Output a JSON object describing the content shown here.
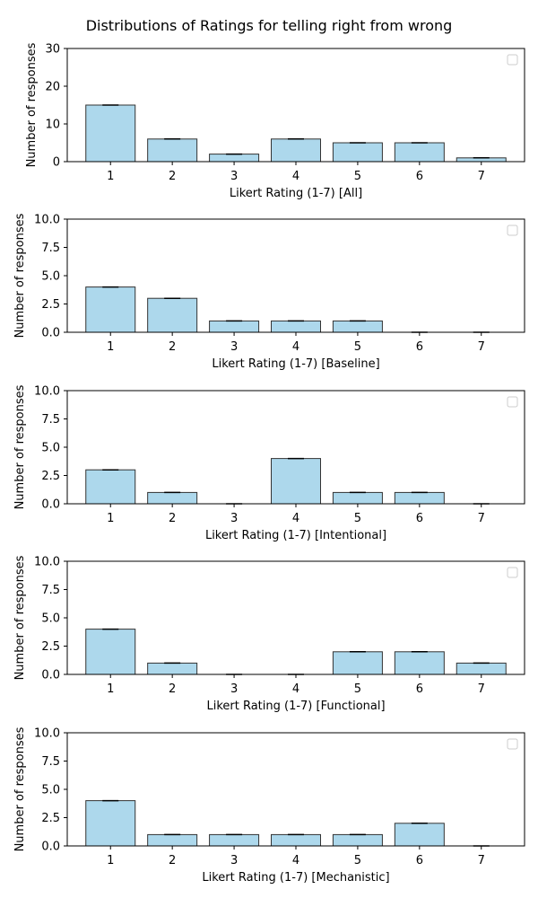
{
  "figure": {
    "title": "Distributions of Ratings for telling right from wrong"
  },
  "chart_data": [
    {
      "type": "bar",
      "categories": [
        "1",
        "2",
        "3",
        "4",
        "5",
        "6",
        "7"
      ],
      "values": [
        15,
        6,
        2,
        6,
        5,
        5,
        1
      ],
      "xlabel": "Likert Rating (1-7) [All]",
      "ylabel": "Number of responses",
      "ylim": [
        0,
        30
      ],
      "yticks": [
        "0",
        "10",
        "20",
        "30"
      ],
      "bar_color": "#add8ec",
      "legend": "top-right (empty)"
    },
    {
      "type": "bar",
      "categories": [
        "1",
        "2",
        "3",
        "4",
        "5",
        "6",
        "7"
      ],
      "values": [
        4,
        3,
        1,
        1,
        1,
        0,
        0
      ],
      "xlabel": "Likert Rating (1-7) [Baseline]",
      "ylabel": "Number of responses",
      "ylim": [
        0,
        10
      ],
      "yticks": [
        "0.0",
        "2.5",
        "5.0",
        "7.5",
        "10.0"
      ],
      "bar_color": "#add8ec",
      "legend": "top-right (empty)"
    },
    {
      "type": "bar",
      "categories": [
        "1",
        "2",
        "3",
        "4",
        "5",
        "6",
        "7"
      ],
      "values": [
        3,
        1,
        0,
        4,
        1,
        1,
        0
      ],
      "xlabel": "Likert Rating (1-7) [Intentional]",
      "ylabel": "Number of responses",
      "ylim": [
        0,
        10
      ],
      "yticks": [
        "0.0",
        "2.5",
        "5.0",
        "7.5",
        "10.0"
      ],
      "bar_color": "#add8ec",
      "legend": "top-right (empty)"
    },
    {
      "type": "bar",
      "categories": [
        "1",
        "2",
        "3",
        "4",
        "5",
        "6",
        "7"
      ],
      "values": [
        4,
        1,
        0,
        0,
        2,
        2,
        1
      ],
      "xlabel": "Likert Rating (1-7) [Functional]",
      "ylabel": "Number of responses",
      "ylim": [
        0,
        10
      ],
      "yticks": [
        "0.0",
        "2.5",
        "5.0",
        "7.5",
        "10.0"
      ],
      "bar_color": "#add8ec",
      "legend": "top-right (empty)"
    },
    {
      "type": "bar",
      "categories": [
        "1",
        "2",
        "3",
        "4",
        "5",
        "6",
        "7"
      ],
      "values": [
        4,
        1,
        1,
        1,
        1,
        2,
        0
      ],
      "xlabel": "Likert Rating (1-7) [Mechanistic]",
      "ylabel": "Number of responses",
      "ylim": [
        0,
        10
      ],
      "yticks": [
        "0.0",
        "2.5",
        "5.0",
        "7.5",
        "10.0"
      ],
      "bar_color": "#add8ec",
      "legend": "top-right (empty)"
    }
  ]
}
